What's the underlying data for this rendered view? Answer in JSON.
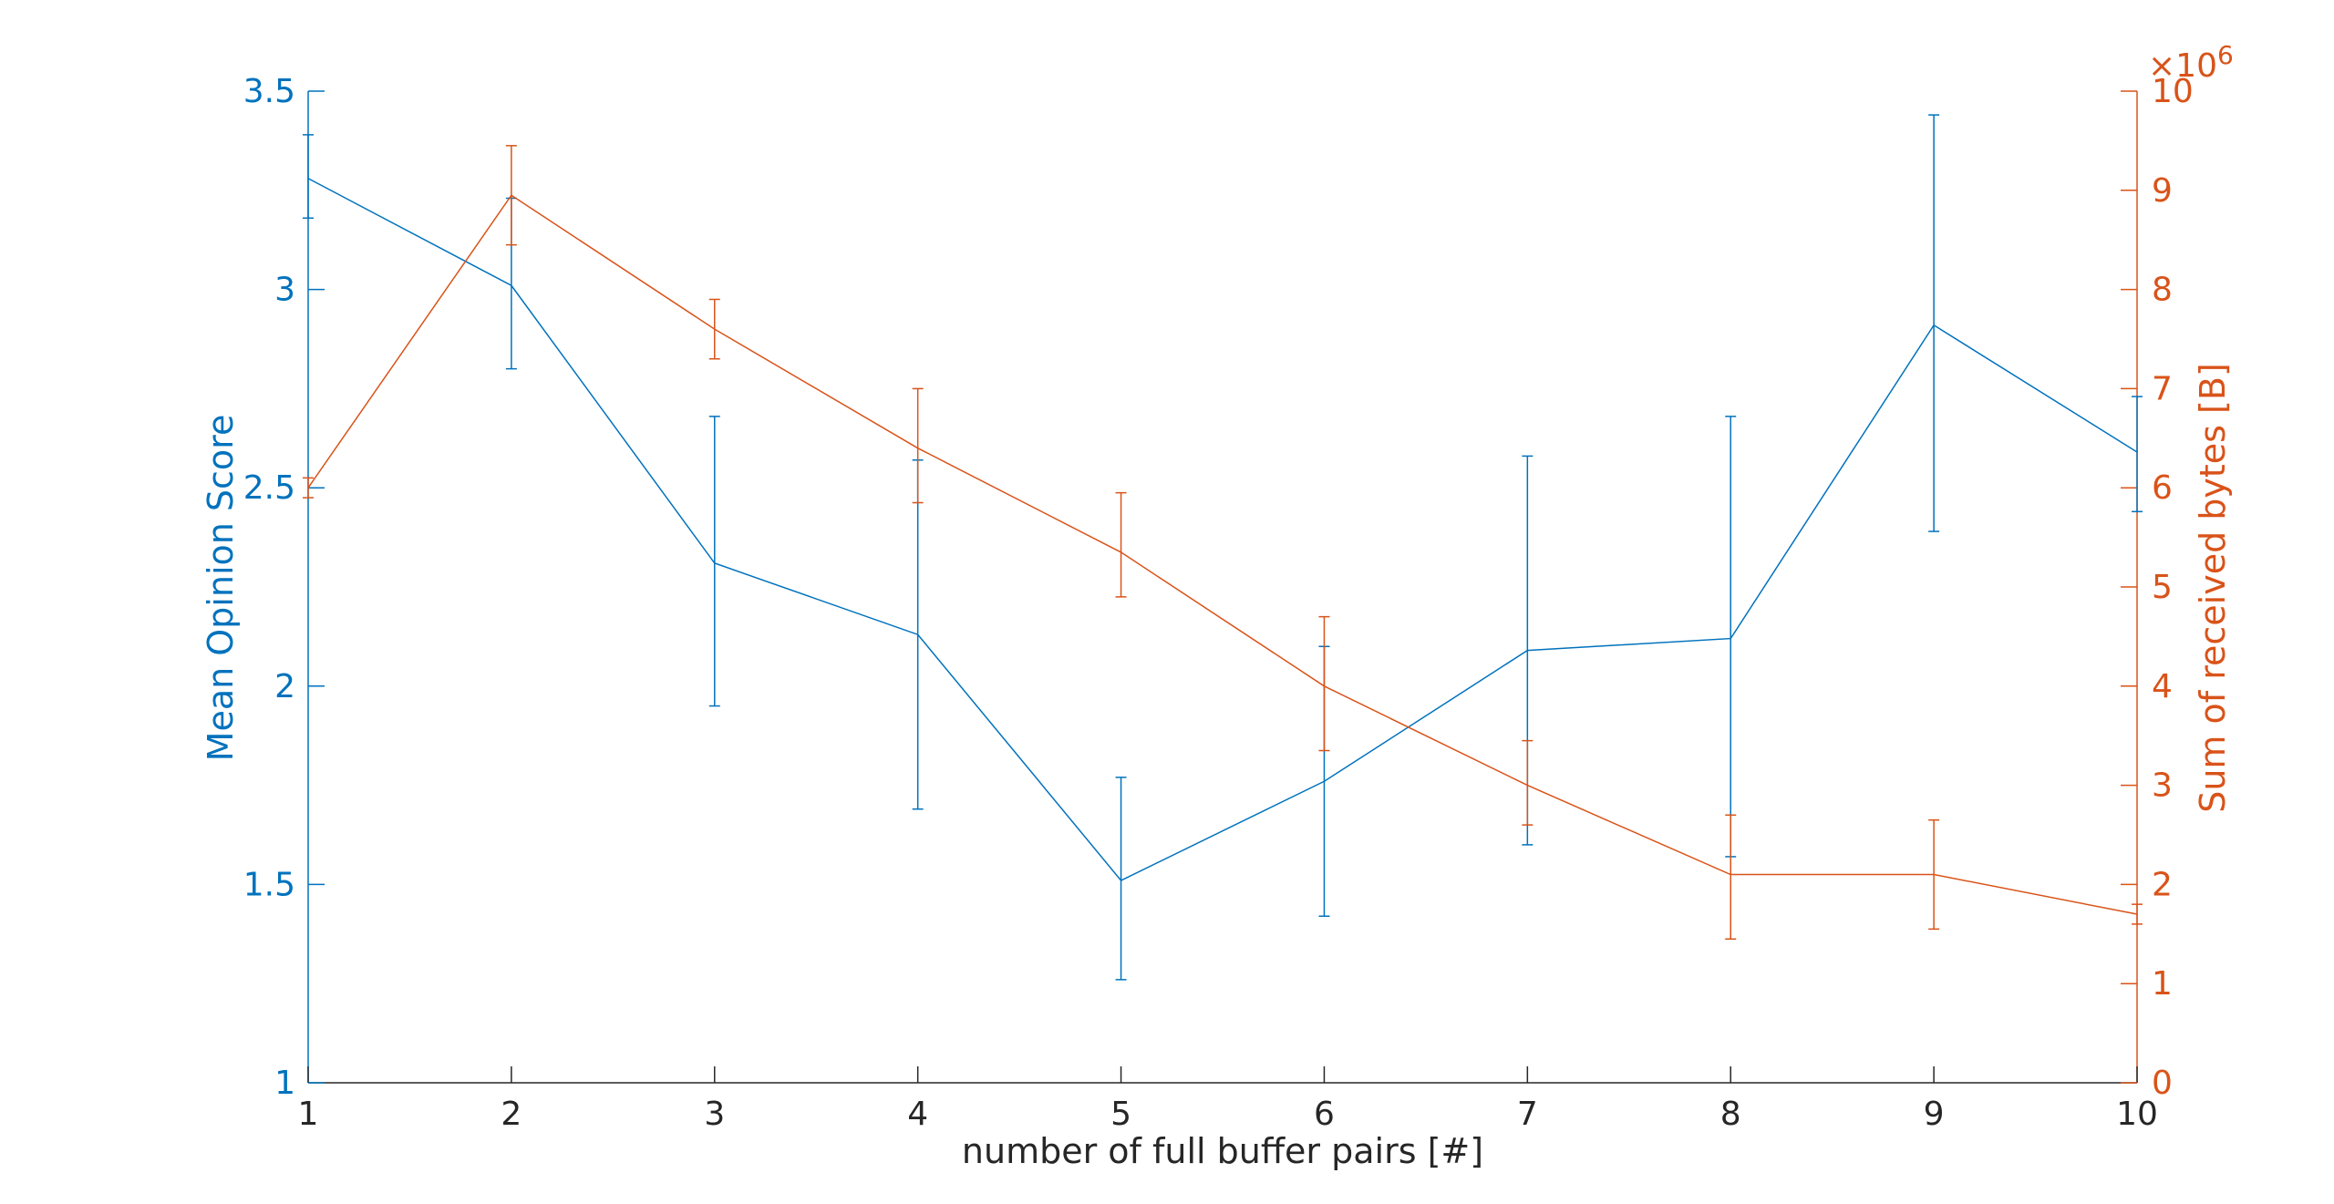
{
  "chart_data": {
    "type": "line",
    "x": [
      1,
      2,
      3,
      4,
      5,
      6,
      7,
      8,
      9,
      10
    ],
    "xlabel": "number of full buffer pairs [#]",
    "xlim": [
      1,
      10
    ],
    "x_ticks": [
      "1",
      "2",
      "3",
      "4",
      "5",
      "6",
      "7",
      "8",
      "9",
      "10"
    ],
    "grid": false,
    "series": [
      {
        "axis": "left",
        "color": "#0072bd",
        "values": [
          3.28,
          3.01,
          2.31,
          2.13,
          1.51,
          1.76,
          2.09,
          2.12,
          2.91,
          2.59
        ],
        "err_low": [
          3.18,
          2.8,
          1.95,
          1.69,
          1.26,
          1.42,
          1.6,
          1.57,
          2.39,
          2.44
        ],
        "err_high": [
          3.39,
          3.23,
          2.68,
          2.57,
          1.77,
          2.1,
          2.58,
          2.68,
          3.44,
          2.73
        ]
      },
      {
        "axis": "right",
        "color": "#d95319",
        "values": [
          6.0,
          8.95,
          7.6,
          6.4,
          5.35,
          4.0,
          3.0,
          2.1,
          2.1,
          1.7
        ],
        "err_low": [
          5.9,
          8.45,
          7.3,
          5.85,
          4.9,
          3.35,
          2.6,
          1.45,
          1.55,
          1.6
        ],
        "err_high": [
          6.1,
          9.45,
          7.9,
          7.0,
          5.95,
          4.7,
          3.45,
          2.7,
          2.65,
          1.8
        ]
      }
    ],
    "y_left": {
      "label": "Mean Opinion Score",
      "lim": [
        1,
        3.5
      ],
      "ticks": [
        "1",
        "1.5",
        "2",
        "2.5",
        "3",
        "3.5"
      ],
      "color": "#0072bd"
    },
    "y_right": {
      "label": "Sum of received bytes [B]",
      "lim": [
        0,
        10
      ],
      "ticks": [
        "0",
        "1",
        "2",
        "3",
        "4",
        "5",
        "6",
        "7",
        "8",
        "9",
        "10"
      ],
      "multiplier": "×10",
      "multiplier_exp": "6",
      "color": "#d95319"
    }
  }
}
